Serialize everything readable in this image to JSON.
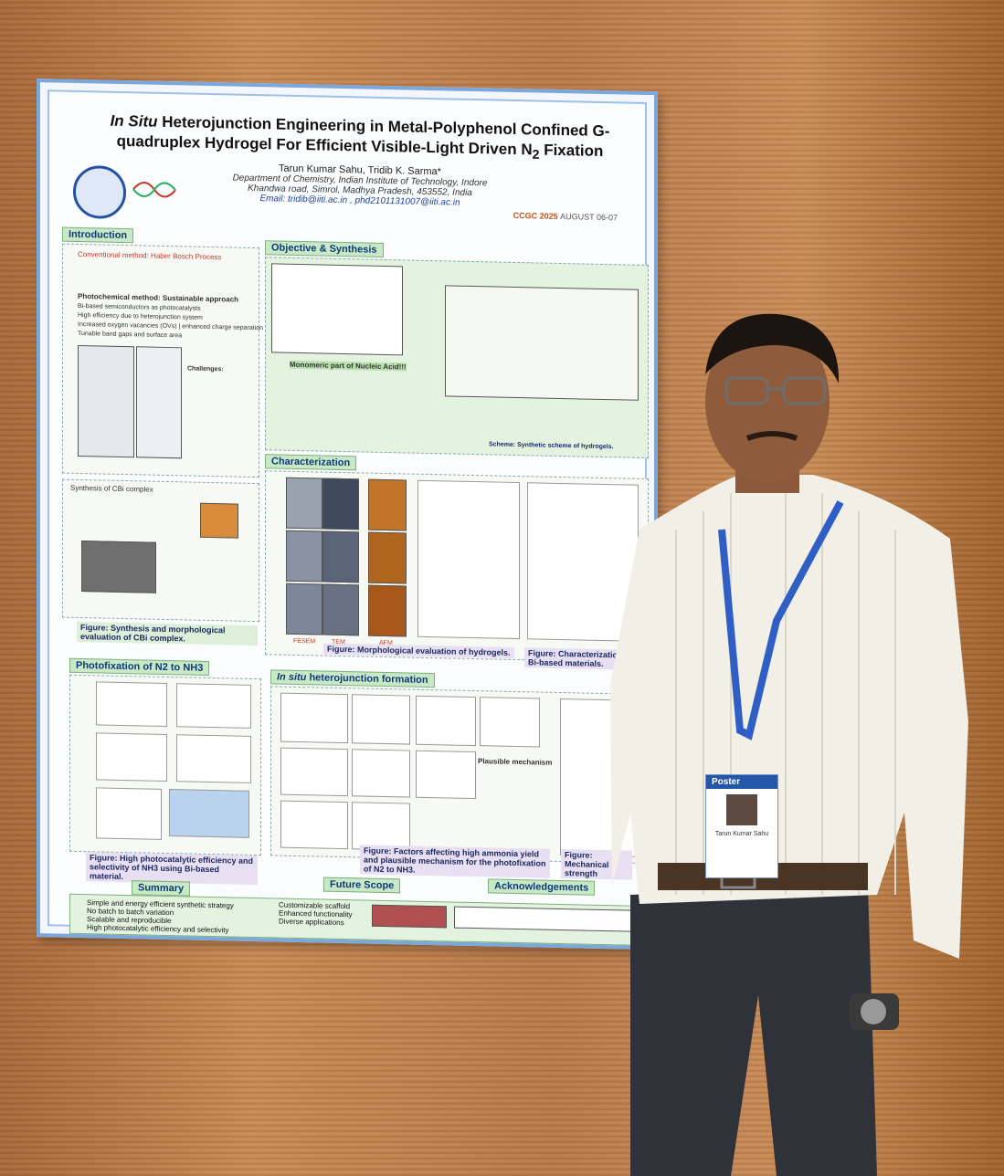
{
  "poster": {
    "title_italic": "In Situ",
    "title_rest_line1": " Heterojunction Engineering in Metal-Polyphenol Confined G-",
    "title_line2": "quadruplex Hydrogel For Efficient Visible-Light Driven N",
    "title_sub": "2",
    "title_end": " Fixation",
    "authors": "Tarun Kumar Sahu, Tridib K. Sarma*",
    "department": "Department of Chemistry, Indian Institute of Technology, Indore",
    "address": "Khandwa road, Simrol, Madhya Pradesh, 453552, India",
    "email": "Email: tridib@iiti.ac.in , phd2101131007@iiti.ac.in",
    "conference": "CCGC 2025",
    "conference_date": "AUGUST 06-07",
    "sections": {
      "introduction": "Introduction",
      "objective": "Objective & Synthesis",
      "characterization": "Characterization",
      "photofixation": "Photofixation of N2 to NH3",
      "heterojunction_italic": "In situ",
      "heterojunction_rest": " heterojunction formation",
      "summary": "Summary",
      "future": "Future Scope",
      "acknowledgements": "Acknowledgements"
    },
    "intro_lines": [
      "Conventional method: Haber Bosch Process",
      "Photochemical method: Sustainable approach",
      "Bi-based semiconductors as photocatalysts",
      "High efficiency due to heterojunction system",
      "Increased oxygen vacancies (OVs) | enhanced charge separation",
      "Tunable band gaps and surface area"
    ],
    "challenges": "Challenges:",
    "synthesis_cbi": "Synthesis of CBi complex",
    "monomeric": "Monomeric part of Nucleic Acid!!!",
    "scheme_caption": "Scheme: Synthetic scheme of hydrogels.",
    "captions": {
      "cbi": "Figure: Synthesis and morphological evaluation of CBi complex.",
      "morph": "Figure: Morphological evaluation of hydrogels.",
      "bi_char": "Figure: Characterization of Bi-based materials.",
      "photo": "Figure: High photocatalytic efficiency and selectivity of NH3 using Bi-based material.",
      "factors": "Figure: Factors affecting high ammonia yield and plausible mechanism for the photofixation of N2 to NH3.",
      "mech": "Figure: Mechanical strength"
    },
    "fesem": "FESEM",
    "tem": "TEM",
    "afm": "AFM",
    "plausible": "Plausible mechanism",
    "summary_items": [
      "Simple and energy efficient synthetic strategy",
      "No batch to batch variation",
      "Scalable and reproducible",
      "High photocatalytic efficiency and selectivity"
    ],
    "future_items": [
      "Customizable scaffold",
      "Enhanced functionality",
      "Diverse applications"
    ]
  },
  "badge": {
    "label": "Poster",
    "name": "Tarun Kumar Sahu"
  },
  "colors": {
    "poster_border": "#7aa7dc",
    "section_green": "#c9e8c6",
    "title_blue": "#0e3a7a",
    "lanyard": "#2f5fc4",
    "shirt": "#f1efe6",
    "trousers": "#2f3238"
  }
}
